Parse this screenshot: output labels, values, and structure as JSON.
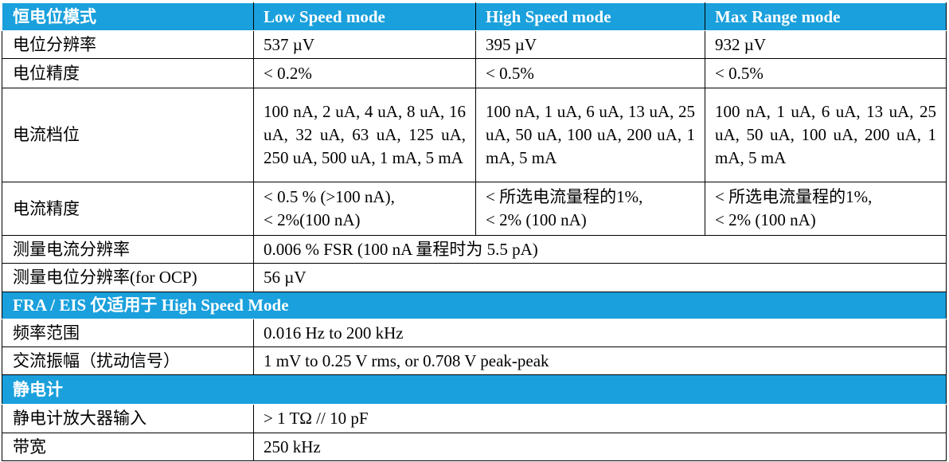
{
  "potentiostat": {
    "header": [
      "恒电位模式",
      "Low Speed mode",
      "High Speed mode",
      "Max Range mode"
    ],
    "rows": [
      [
        "电位分辨率",
        "537 µV",
        "395 µV",
        "932 µV"
      ],
      [
        "电位精度",
        "< 0.2%",
        "< 0.5%",
        "< 0.5%"
      ],
      [
        "电流档位",
        "100 nA, 2 uA, 4 uA, 8 uA, 16 uA, 32 uA, 63 uA, 125 uA, 250 uA, 500 uA, 1 mA, 5 mA",
        "100 nA, 1 uA, 6 uA, 13 uA, 25 uA, 50 uA, 100 uA, 200 uA, 1 mA, 5 mA",
        "100 nA, 1 uA, 6 uA, 13 uA, 25 uA, 50 uA, 100 uA, 200 uA, 1 mA, 5 mA"
      ],
      [
        "电流精度",
        "< 0.5 % (>100 nA),\n< 2%(100 nA)",
        "< 所选电流量程的1%,\n< 2% (100 nA)",
        "< 所选电流量程的1%,\n< 2% (100 nA)"
      ],
      [
        "测量电流分辨率",
        "0.006 % FSR (100 nA 量程时为 5.5 pA)"
      ],
      [
        "测量电位分辨率(for OCP)",
        "56 µV"
      ]
    ]
  },
  "fra_eis": {
    "title": "FRA / EIS 仅适用于 High Speed Mode",
    "rows": [
      [
        "频率范围",
        "0.016 Hz to 200 kHz"
      ],
      [
        "交流振幅（扰动信号）",
        "1 mV to 0.25 V rms, or 0.708 V peak-peak"
      ]
    ]
  },
  "electrometer": {
    "title": "静电计",
    "rows": [
      [
        "静电计放大器输入",
        "> 1 TΩ // 10 pF"
      ],
      [
        "带宽",
        "250 kHz"
      ]
    ]
  }
}
